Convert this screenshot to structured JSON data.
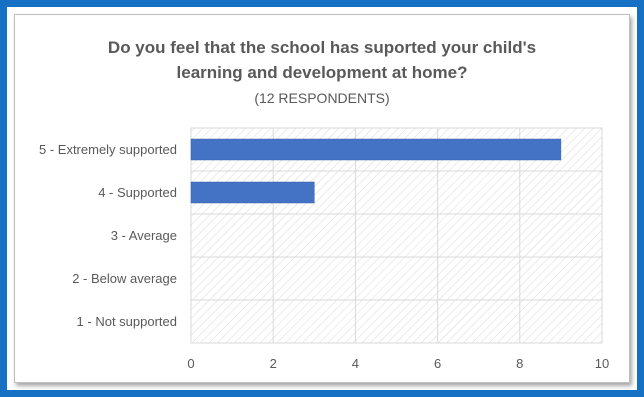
{
  "chart_data": {
    "type": "bar",
    "orientation": "horizontal",
    "title_lines": [
      "Do you feel that the school has suported your child's",
      "learning and development at home?"
    ],
    "subtitle": "(12 RESPONDENTS)",
    "categories": [
      "5 - Extremely supported",
      "4 - Supported",
      "3 - Average",
      "2 - Below average",
      "1 - Not supported"
    ],
    "values": [
      9,
      3,
      0,
      0,
      0
    ],
    "xlim": [
      0,
      10
    ],
    "xticks": [
      0,
      2,
      4,
      6,
      8,
      10
    ],
    "grid": true,
    "bar_color": "#4472c4",
    "plot_background": "hatched-gray"
  },
  "frame": {
    "border_color": "#1670c4"
  }
}
